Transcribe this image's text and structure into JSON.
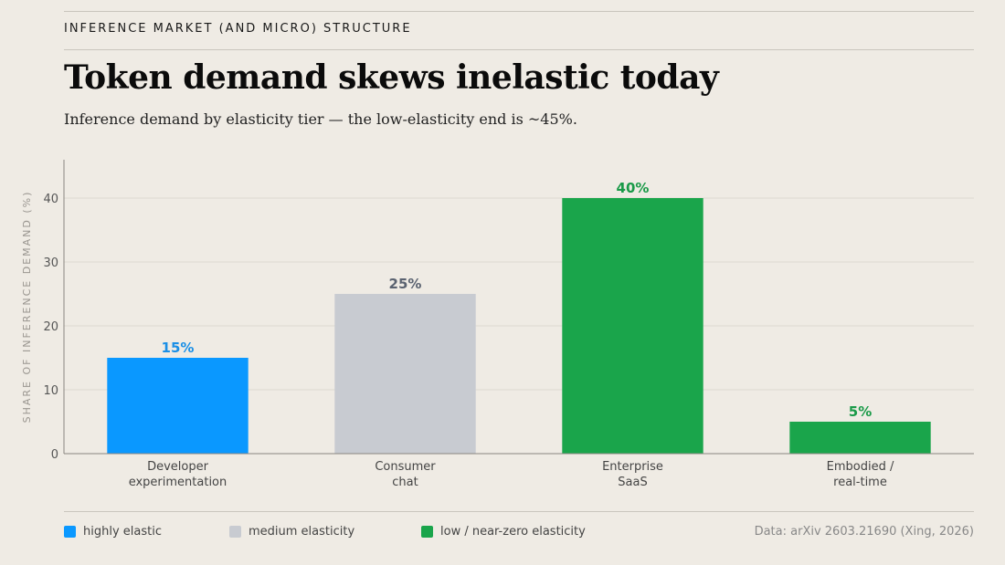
{
  "header": {
    "eyebrow": "INFERENCE MARKET (AND MICRO) STRUCTURE",
    "title": "Token demand skews inelastic today",
    "subtitle": "Inference demand by elasticity tier — the low-elasticity end is ~45%."
  },
  "chart_data": {
    "type": "bar",
    "categories": [
      "Developer experimentation",
      "Consumer chat",
      "Enterprise SaaS",
      "Embodied / real-time"
    ],
    "category_lines": [
      [
        "Developer",
        "experimentation"
      ],
      [
        "Consumer",
        "chat"
      ],
      [
        "Enterprise",
        "SaaS"
      ],
      [
        "Embodied /",
        "real-time"
      ]
    ],
    "values": [
      15,
      25,
      40,
      5
    ],
    "data_labels": [
      "15%",
      "25%",
      "40%",
      "5%"
    ],
    "tiers": [
      "highly elastic",
      "medium elasticity",
      "low / near-zero elasticity",
      "low / near-zero elasticity"
    ],
    "ylabel": "SHARE OF INFERENCE DEMAND (%)",
    "ylim": [
      0,
      46
    ],
    "yticks": [
      0,
      10,
      20,
      30,
      40
    ],
    "grid": true,
    "legend_position": "bottom-left"
  },
  "legend": [
    {
      "label": "highly elastic",
      "color": "#0a98ff"
    },
    {
      "label": "medium elasticity",
      "color": "#c8cbd1"
    },
    {
      "label": "low / near-zero elasticity",
      "color": "#1aa54b"
    }
  ],
  "colors": {
    "highly elastic": "#0a98ff",
    "medium elasticity": "#c8cbd1",
    "low / near-zero elasticity": "#1aa54b",
    "label_highly elastic": "#1a8fe6",
    "label_medium elasticity": "#5a6270",
    "label_low / near-zero elasticity": "#1a9a48"
  },
  "source": "Data: arXiv 2603.21690 (Xing, 2026)"
}
